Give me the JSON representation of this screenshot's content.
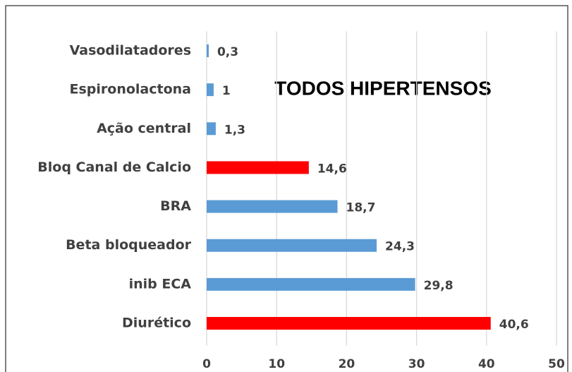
{
  "chart_data": {
    "type": "barh",
    "title": "TODOS HIPERTENSOS",
    "categories": [
      "Vasodilatadores",
      "Espironolactona",
      "Ação central",
      "Bloq Canal de Calcio",
      "BRA",
      "Beta bloqueador",
      "inib ECA",
      "Diurético"
    ],
    "values": [
      0.3,
      1,
      1.3,
      14.6,
      18.7,
      24.3,
      29.8,
      40.6
    ],
    "value_labels": [
      "0,3",
      "1",
      "1,3",
      "14,6",
      "18,7",
      "24,3",
      "29,8",
      "40,6"
    ],
    "colors": [
      "#5b9bd5",
      "#5b9bd5",
      "#5b9bd5",
      "#ff0000",
      "#5b9bd5",
      "#5b9bd5",
      "#5b9bd5",
      "#ff0000"
    ],
    "xlim": [
      0,
      50
    ],
    "xticks": [
      0,
      10,
      20,
      30,
      40,
      50
    ],
    "grid": true
  }
}
